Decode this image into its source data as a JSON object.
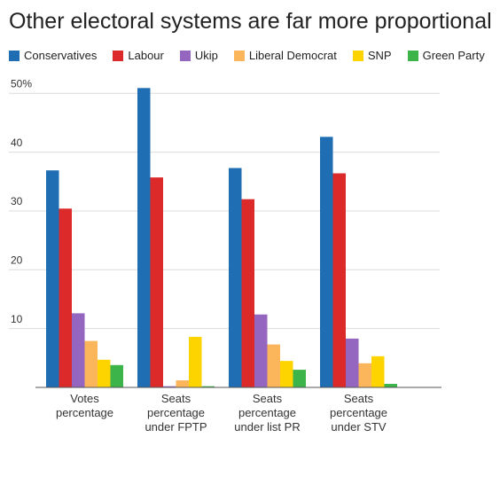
{
  "chart_data": {
    "type": "bar",
    "title": "Other electoral systems are far more proportional",
    "categories": [
      "Votes percentage",
      "Seats percentage under FPTP",
      "Seats percentage under list PR",
      "Seats percentage under STV"
    ],
    "series": [
      {
        "name": "Conservatives",
        "color": "#1f6db3",
        "values": [
          36.9,
          50.9,
          37.3,
          42.6
        ]
      },
      {
        "name": "Labour",
        "color": "#dc2a2a",
        "values": [
          30.4,
          35.7,
          32.0,
          36.4
        ]
      },
      {
        "name": "Ukip",
        "color": "#9466c0",
        "values": [
          12.6,
          0.2,
          12.4,
          8.3
        ]
      },
      {
        "name": "Liberal Democrat",
        "color": "#fbb65c",
        "values": [
          7.9,
          1.2,
          7.3,
          4.1
        ]
      },
      {
        "name": "SNP",
        "color": "#fdd400",
        "values": [
          4.7,
          8.6,
          4.5,
          5.3
        ]
      },
      {
        "name": "Green Party",
        "color": "#3db44a",
        "values": [
          3.8,
          0.2,
          3.0,
          0.6
        ]
      }
    ],
    "ylim": [
      0,
      52
    ],
    "yticks": [
      10,
      20,
      30,
      40,
      {
        "value": 50,
        "label": "50%"
      }
    ],
    "grid": true
  }
}
